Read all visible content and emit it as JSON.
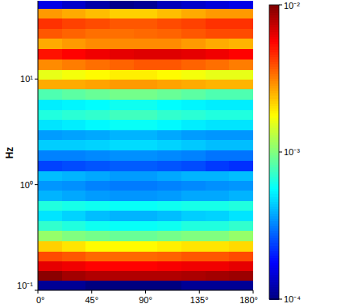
{
  "chart_data": {
    "type": "heatmap",
    "y_label": "Hz",
    "log": "y",
    "x": [
      10,
      30,
      50,
      70,
      90,
      110,
      130,
      150,
      170
    ],
    "y": [
      0.11,
      0.14,
      0.17,
      0.21,
      0.26,
      0.33,
      0.41,
      0.51,
      0.64,
      0.79,
      0.99,
      1.2,
      1.5,
      1.9,
      2.4,
      3.0,
      3.7,
      4.6,
      5.8,
      7.2,
      9.0,
      11,
      14,
      17,
      22,
      27,
      34,
      42,
      52
    ],
    "xlim": [
      0,
      180
    ],
    "ylim": [
      0.1,
      55
    ],
    "xticks": [
      {
        "value": 0,
        "label": "0°"
      },
      {
        "value": 45,
        "label": "45°"
      },
      {
        "value": 90,
        "label": "90°"
      },
      {
        "value": 135,
        "label": "135°"
      },
      {
        "value": 180,
        "label": "180°"
      }
    ],
    "yticks": [
      {
        "value": 0.1,
        "label": "10⁻¹"
      },
      {
        "value": 1,
        "label": "10⁰"
      },
      {
        "value": 10,
        "label": "10¹"
      }
    ],
    "color_range": [
      0.0001,
      0.01
    ],
    "color_ticks": [
      {
        "value": 0.0001,
        "label": "10⁻⁴"
      },
      {
        "value": 0.001,
        "label": "10⁻³"
      },
      {
        "value": 0.01,
        "label": "10⁻²"
      }
    ],
    "cells": [
      [
        0.00011,
        0.00011,
        0.0001,
        0.0001,
        0.0001,
        0.0001,
        0.00011,
        0.00011,
        0.00011
      ],
      [
        0.0095,
        0.0085,
        0.008,
        0.008,
        0.008,
        0.008,
        0.0082,
        0.0085,
        0.0088
      ],
      [
        0.0063,
        0.006,
        0.0056,
        0.0056,
        0.0056,
        0.0058,
        0.006,
        0.006,
        0.0063
      ],
      [
        0.004,
        0.0038,
        0.0035,
        0.0035,
        0.0035,
        0.0036,
        0.0038,
        0.0038,
        0.004
      ],
      [
        0.0022,
        0.002,
        0.0018,
        0.0018,
        0.0018,
        0.0019,
        0.002,
        0.002,
        0.0021
      ],
      [
        0.0011,
        0.001,
        0.00095,
        0.0009,
        0.0009,
        0.00095,
        0.001,
        0.001,
        0.0011
      ],
      [
        0.0007,
        0.00065,
        0.0006,
        0.00058,
        0.00058,
        0.0006,
        0.00065,
        0.00065,
        0.0007
      ],
      [
        0.0005,
        0.00046,
        0.00042,
        0.0004,
        0.0004,
        0.00042,
        0.00045,
        0.00046,
        0.0005
      ],
      [
        0.00065,
        0.00062,
        0.0006,
        0.00058,
        0.00058,
        0.0006,
        0.00062,
        0.00062,
        0.00065
      ],
      [
        0.0004,
        0.00038,
        0.00036,
        0.00035,
        0.00035,
        0.00036,
        0.00038,
        0.00038,
        0.0004
      ],
      [
        0.00035,
        0.00034,
        0.00032,
        0.00031,
        0.00031,
        0.00032,
        0.00033,
        0.00034,
        0.00035
      ],
      [
        0.00042,
        0.0004,
        0.00038,
        0.00036,
        0.00036,
        0.00038,
        0.0004,
        0.0004,
        0.00042
      ],
      [
        0.00024,
        0.00025,
        0.00026,
        0.00027,
        0.00027,
        0.00026,
        0.00025,
        0.00023,
        0.00022
      ],
      [
        0.00032,
        0.00032,
        0.00033,
        0.00034,
        0.00034,
        0.00033,
        0.00032,
        0.0003,
        0.0003
      ],
      [
        0.00045,
        0.00045,
        0.00046,
        0.00048,
        0.00048,
        0.00046,
        0.00044,
        0.00042,
        0.00042
      ],
      [
        0.00036,
        0.00037,
        0.00038,
        0.0004,
        0.0004,
        0.00038,
        0.00036,
        0.00035,
        0.00035
      ],
      [
        0.0005,
        0.00052,
        0.00055,
        0.00058,
        0.00058,
        0.00055,
        0.00052,
        0.0005,
        0.0005
      ],
      [
        0.00065,
        0.00068,
        0.0007,
        0.00075,
        0.00075,
        0.0007,
        0.00068,
        0.00065,
        0.00065
      ],
      [
        0.00052,
        0.00054,
        0.00056,
        0.0006,
        0.0006,
        0.00056,
        0.00054,
        0.00052,
        0.00052
      ],
      [
        0.0008,
        0.00085,
        0.0009,
        0.00095,
        0.00095,
        0.0009,
        0.00085,
        0.0008,
        0.0008
      ],
      [
        0.0026,
        0.0026,
        0.0027,
        0.0028,
        0.0028,
        0.0027,
        0.0026,
        0.0025,
        0.0025
      ],
      [
        0.0016,
        0.0017,
        0.0018,
        0.0019,
        0.0019,
        0.0018,
        0.0017,
        0.0016,
        0.0016
      ],
      [
        0.003,
        0.0032,
        0.0034,
        0.0036,
        0.0038,
        0.0038,
        0.0036,
        0.0034,
        0.0032
      ],
      [
        0.0052,
        0.0056,
        0.006,
        0.0063,
        0.0065,
        0.0065,
        0.0063,
        0.006,
        0.0056
      ],
      [
        0.0026,
        0.0028,
        0.003,
        0.003,
        0.003,
        0.003,
        0.0028,
        0.0026,
        0.0025
      ],
      [
        0.0038,
        0.0036,
        0.0034,
        0.0034,
        0.0035,
        0.0036,
        0.0038,
        0.004,
        0.004
      ],
      [
        0.0045,
        0.0042,
        0.004,
        0.0038,
        0.0038,
        0.004,
        0.0042,
        0.0045,
        0.0045
      ],
      [
        0.0028,
        0.0026,
        0.0024,
        0.0022,
        0.0022,
        0.0024,
        0.0026,
        0.0028,
        0.0028
      ],
      [
        0.00016,
        0.00014,
        0.00012,
        0.000105,
        0.00011,
        0.00013,
        0.00014,
        0.00015,
        0.00016
      ]
    ]
  }
}
